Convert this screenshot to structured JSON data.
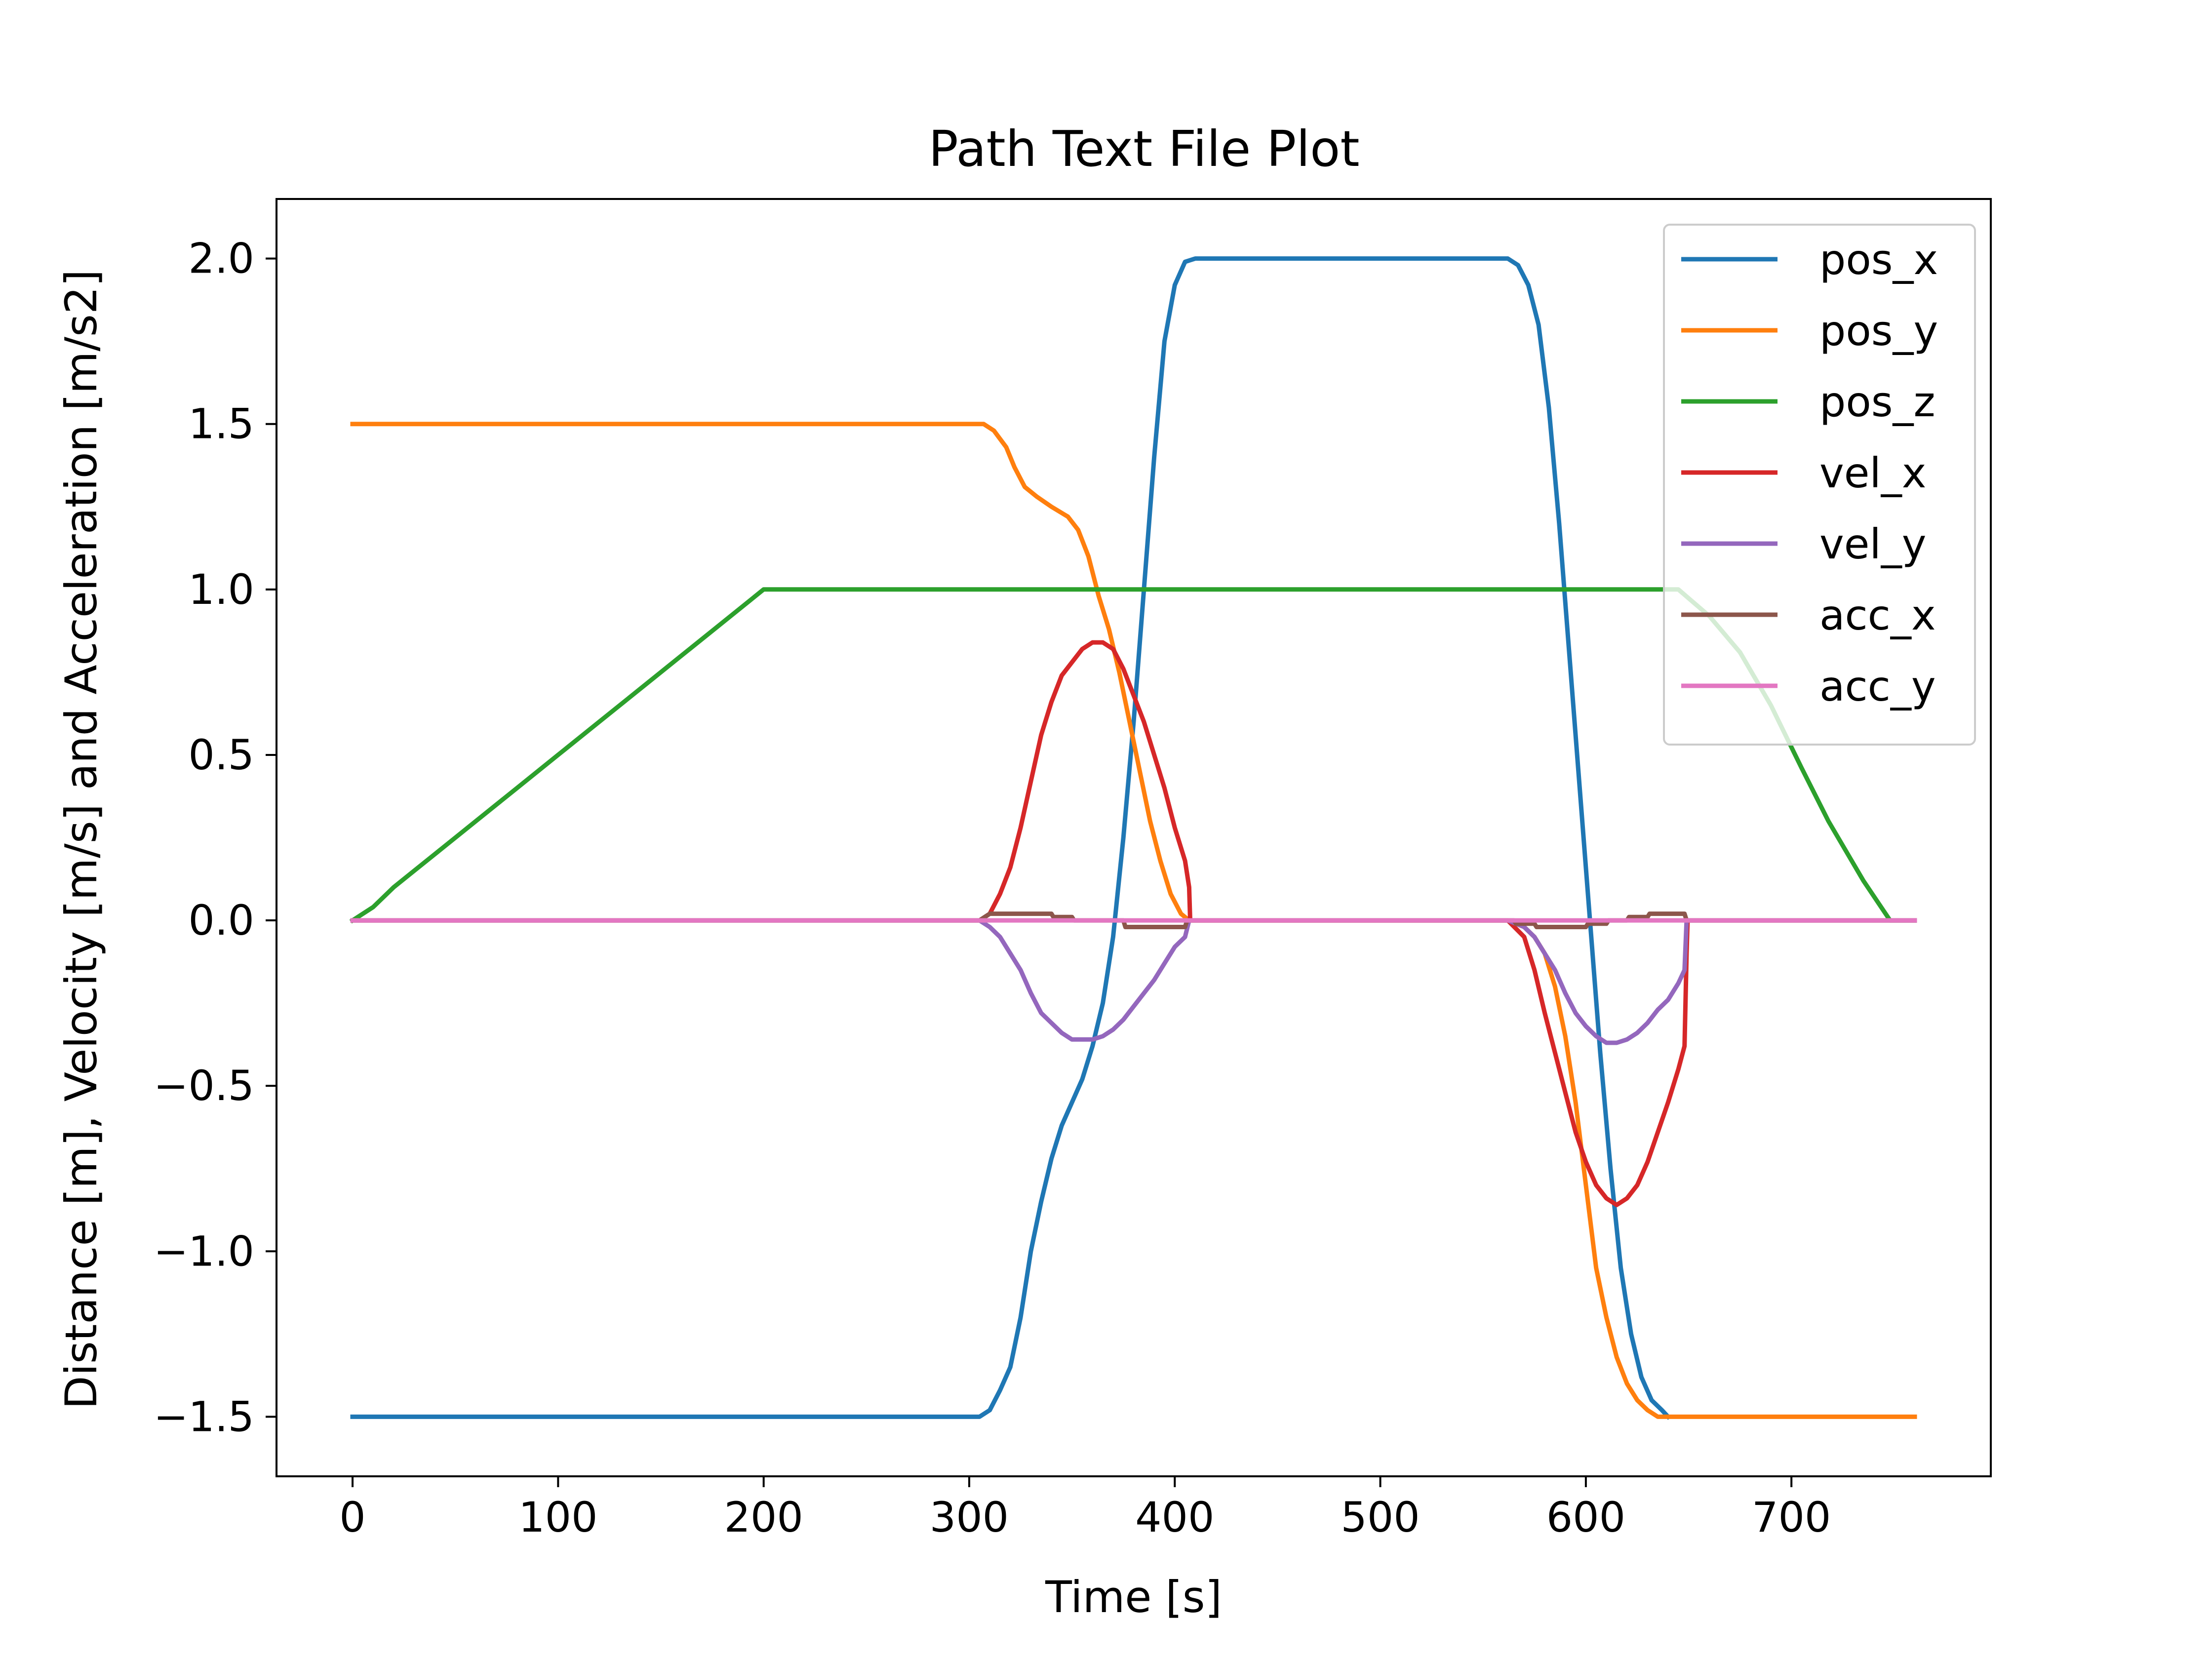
{
  "chart_data": {
    "type": "line",
    "title": "Path Text File Plot",
    "xlabel": "Time [s]",
    "ylabel": "Distance [m], Velocity [m/s] and Acceleration [m/s2]",
    "xlim": [
      -37,
      797
    ],
    "ylim": [
      -1.68,
      2.18
    ],
    "xticks": [
      0,
      100,
      200,
      300,
      400,
      500,
      600,
      700
    ],
    "yticks": [
      -1.5,
      -1.0,
      -0.5,
      0.0,
      0.5,
      1.0,
      1.5,
      2.0
    ],
    "xtick_labels": [
      "0",
      "100",
      "200",
      "300",
      "400",
      "500",
      "600",
      "700"
    ],
    "ytick_labels": [
      "−1.5",
      "−1.0",
      "−0.5",
      "0.0",
      "0.5",
      "1.0",
      "1.5",
      "2.0"
    ],
    "grid": false,
    "legend_position": "top-right",
    "series": [
      {
        "name": "pos_x",
        "color": "#1f77b4",
        "points": [
          [
            0,
            -1.5
          ],
          [
            305,
            -1.5
          ],
          [
            310,
            -1.48
          ],
          [
            315,
            -1.42
          ],
          [
            320,
            -1.35
          ],
          [
            325,
            -1.2
          ],
          [
            330,
            -1.0
          ],
          [
            335,
            -0.85
          ],
          [
            340,
            -0.72
          ],
          [
            345,
            -0.62
          ],
          [
            350,
            -0.55
          ],
          [
            355,
            -0.48
          ],
          [
            360,
            -0.38
          ],
          [
            365,
            -0.25
          ],
          [
            370,
            -0.05
          ],
          [
            375,
            0.25
          ],
          [
            380,
            0.6
          ],
          [
            385,
            1.0
          ],
          [
            390,
            1.4
          ],
          [
            395,
            1.75
          ],
          [
            400,
            1.92
          ],
          [
            405,
            1.99
          ],
          [
            410,
            2.0
          ],
          [
            562,
            2.0
          ],
          [
            567,
            1.98
          ],
          [
            572,
            1.92
          ],
          [
            577,
            1.8
          ],
          [
            582,
            1.55
          ],
          [
            587,
            1.2
          ],
          [
            592,
            0.8
          ],
          [
            597,
            0.4
          ],
          [
            602,
            0.0
          ],
          [
            607,
            -0.4
          ],
          [
            612,
            -0.75
          ],
          [
            617,
            -1.05
          ],
          [
            622,
            -1.25
          ],
          [
            627,
            -1.38
          ],
          [
            632,
            -1.45
          ],
          [
            637,
            -1.48
          ],
          [
            640,
            -1.5
          ]
        ]
      },
      {
        "name": "pos_y",
        "color": "#ff7f0e",
        "points": [
          [
            0,
            1.5
          ],
          [
            307,
            1.5
          ],
          [
            312,
            1.48
          ],
          [
            318,
            1.43
          ],
          [
            322,
            1.37
          ],
          [
            327,
            1.31
          ],
          [
            333,
            1.28
          ],
          [
            340,
            1.25
          ],
          [
            348,
            1.22
          ],
          [
            353,
            1.18
          ],
          [
            358,
            1.1
          ],
          [
            363,
            0.98
          ],
          [
            368,
            0.88
          ],
          [
            373,
            0.75
          ],
          [
            378,
            0.6
          ],
          [
            383,
            0.45
          ],
          [
            388,
            0.3
          ],
          [
            393,
            0.18
          ],
          [
            398,
            0.08
          ],
          [
            403,
            0.02
          ],
          [
            407,
            0.0
          ],
          [
            562,
            0.0
          ],
          [
            570,
            -0.02
          ],
          [
            575,
            -0.05
          ],
          [
            580,
            -0.1
          ],
          [
            585,
            -0.2
          ],
          [
            590,
            -0.35
          ],
          [
            595,
            -0.55
          ],
          [
            600,
            -0.8
          ],
          [
            605,
            -1.05
          ],
          [
            610,
            -1.2
          ],
          [
            615,
            -1.32
          ],
          [
            620,
            -1.4
          ],
          [
            625,
            -1.45
          ],
          [
            630,
            -1.48
          ],
          [
            635,
            -1.5
          ],
          [
            760,
            -1.5
          ]
        ]
      },
      {
        "name": "pos_z",
        "color": "#2ca02c",
        "points": [
          [
            0,
            0.0
          ],
          [
            10,
            0.04
          ],
          [
            20,
            0.1
          ],
          [
            30,
            0.15
          ],
          [
            40,
            0.2
          ],
          [
            60,
            0.3
          ],
          [
            80,
            0.4
          ],
          [
            100,
            0.5
          ],
          [
            120,
            0.6
          ],
          [
            140,
            0.7
          ],
          [
            160,
            0.8
          ],
          [
            180,
            0.9
          ],
          [
            200,
            1.0
          ],
          [
            645,
            1.0
          ],
          [
            660,
            0.92
          ],
          [
            675,
            0.81
          ],
          [
            690,
            0.65
          ],
          [
            705,
            0.46
          ],
          [
            718,
            0.3
          ],
          [
            735,
            0.12
          ],
          [
            748,
            0.0
          ],
          [
            760,
            0.0
          ]
        ]
      },
      {
        "name": "vel_x",
        "color": "#d62728",
        "points": [
          [
            0,
            0.0
          ],
          [
            305,
            0.0
          ],
          [
            310,
            0.02
          ],
          [
            315,
            0.08
          ],
          [
            320,
            0.16
          ],
          [
            325,
            0.28
          ],
          [
            330,
            0.42
          ],
          [
            335,
            0.56
          ],
          [
            340,
            0.66
          ],
          [
            345,
            0.74
          ],
          [
            350,
            0.78
          ],
          [
            355,
            0.82
          ],
          [
            360,
            0.84
          ],
          [
            365,
            0.84
          ],
          [
            370,
            0.82
          ],
          [
            375,
            0.76
          ],
          [
            380,
            0.68
          ],
          [
            385,
            0.6
          ],
          [
            390,
            0.5
          ],
          [
            395,
            0.4
          ],
          [
            400,
            0.28
          ],
          [
            405,
            0.18
          ],
          [
            407,
            0.1
          ],
          [
            407.5,
            0.0
          ],
          [
            562,
            0.0
          ],
          [
            570,
            -0.05
          ],
          [
            575,
            -0.15
          ],
          [
            580,
            -0.28
          ],
          [
            585,
            -0.4
          ],
          [
            590,
            -0.52
          ],
          [
            595,
            -0.64
          ],
          [
            600,
            -0.73
          ],
          [
            605,
            -0.8
          ],
          [
            610,
            -0.84
          ],
          [
            615,
            -0.86
          ],
          [
            620,
            -0.84
          ],
          [
            625,
            -0.8
          ],
          [
            630,
            -0.73
          ],
          [
            635,
            -0.64
          ],
          [
            640,
            -0.55
          ],
          [
            645,
            -0.45
          ],
          [
            648,
            -0.38
          ],
          [
            649,
            -0.1
          ],
          [
            649.5,
            0.0
          ],
          [
            760,
            0.0
          ]
        ]
      },
      {
        "name": "vel_y",
        "color": "#9467bd",
        "points": [
          [
            0,
            0.0
          ],
          [
            305,
            0.0
          ],
          [
            310,
            -0.02
          ],
          [
            315,
            -0.05
          ],
          [
            320,
            -0.1
          ],
          [
            325,
            -0.15
          ],
          [
            330,
            -0.22
          ],
          [
            335,
            -0.28
          ],
          [
            340,
            -0.31
          ],
          [
            345,
            -0.34
          ],
          [
            350,
            -0.36
          ],
          [
            355,
            -0.36
          ],
          [
            360,
            -0.36
          ],
          [
            365,
            -0.35
          ],
          [
            370,
            -0.33
          ],
          [
            375,
            -0.3
          ],
          [
            380,
            -0.26
          ],
          [
            385,
            -0.22
          ],
          [
            390,
            -0.18
          ],
          [
            395,
            -0.13
          ],
          [
            400,
            -0.08
          ],
          [
            405,
            -0.05
          ],
          [
            407,
            0.0
          ],
          [
            562,
            0.0
          ],
          [
            570,
            -0.02
          ],
          [
            575,
            -0.05
          ],
          [
            580,
            -0.1
          ],
          [
            585,
            -0.15
          ],
          [
            590,
            -0.22
          ],
          [
            595,
            -0.28
          ],
          [
            600,
            -0.32
          ],
          [
            605,
            -0.35
          ],
          [
            610,
            -0.37
          ],
          [
            615,
            -0.37
          ],
          [
            620,
            -0.36
          ],
          [
            625,
            -0.34
          ],
          [
            630,
            -0.31
          ],
          [
            635,
            -0.27
          ],
          [
            640,
            -0.24
          ],
          [
            645,
            -0.19
          ],
          [
            648,
            -0.15
          ],
          [
            649,
            0.0
          ],
          [
            760,
            0.0
          ]
        ]
      },
      {
        "name": "acc_x",
        "color": "#8c564b",
        "points": [
          [
            0,
            0.0
          ],
          [
            305,
            0.0
          ],
          [
            310,
            0.02
          ],
          [
            340,
            0.02
          ],
          [
            341,
            0.01
          ],
          [
            350,
            0.01
          ],
          [
            351,
            0.0
          ],
          [
            375,
            0.0
          ],
          [
            376,
            -0.02
          ],
          [
            405,
            -0.02
          ],
          [
            406,
            0.0
          ],
          [
            565,
            0.0
          ],
          [
            566,
            -0.01
          ],
          [
            575,
            -0.01
          ],
          [
            576,
            -0.02
          ],
          [
            600,
            -0.02
          ],
          [
            601,
            -0.01
          ],
          [
            610,
            -0.01
          ],
          [
            611,
            0.0
          ],
          [
            620,
            0.0
          ],
          [
            621,
            0.01
          ],
          [
            630,
            0.01
          ],
          [
            631,
            0.02
          ],
          [
            648,
            0.02
          ],
          [
            649,
            0.0
          ],
          [
            760,
            0.0
          ]
        ]
      },
      {
        "name": "acc_y",
        "color": "#e377c2",
        "points": [
          [
            0,
            0.0
          ],
          [
            760,
            0.0
          ]
        ]
      }
    ]
  }
}
